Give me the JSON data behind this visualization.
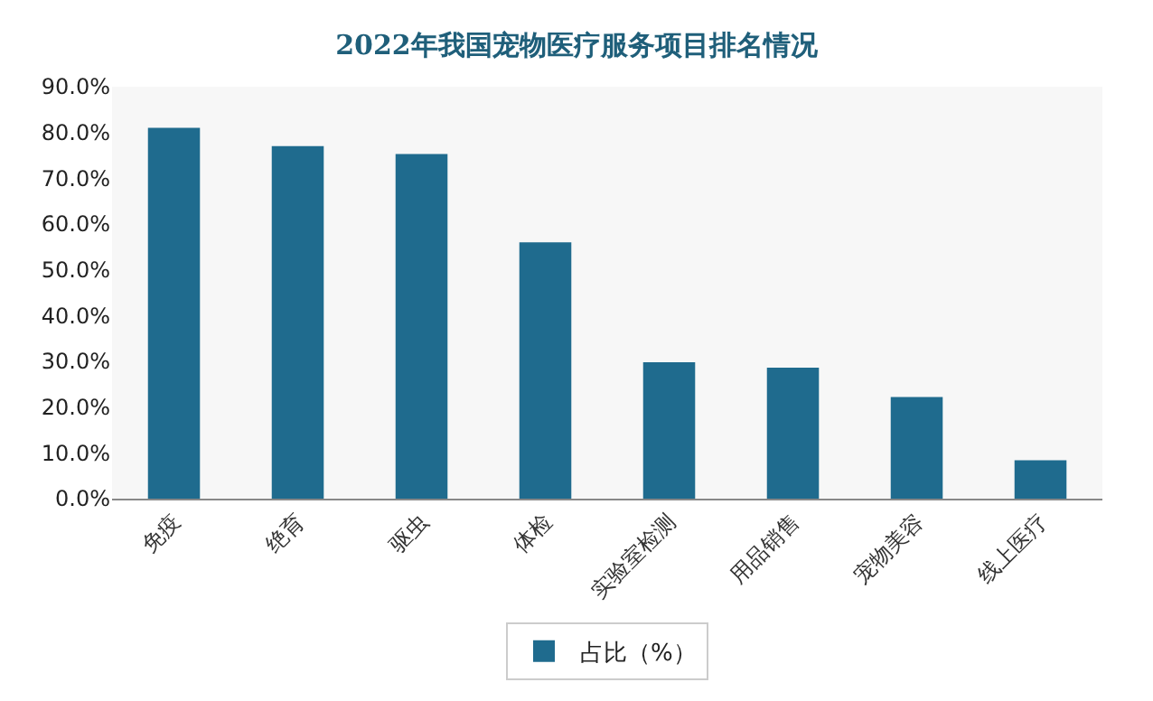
{
  "chart_data": {
    "type": "bar",
    "title": "2022年我国宠物医疗服务项目排名情况",
    "categories": [
      "免疫",
      "绝育",
      "驱虫",
      "体检",
      "实验室检测",
      "用品销售",
      "宠物美容",
      "线上医疗"
    ],
    "series": [
      {
        "name": "占比（%）",
        "color": "#1f6b8e",
        "values": [
          81.0,
          77.0,
          75.3,
          56.0,
          29.8,
          28.6,
          22.2,
          8.4
        ]
      }
    ],
    "ylim": [
      0,
      90
    ],
    "yticks": [
      {
        "value": 0,
        "label": "0.0%"
      },
      {
        "value": 10,
        "label": "10.0%"
      },
      {
        "value": 20,
        "label": "20.0%"
      },
      {
        "value": 30,
        "label": "30.0%"
      },
      {
        "value": 40,
        "label": "40.0%"
      },
      {
        "value": 50,
        "label": "50.0%"
      },
      {
        "value": 60,
        "label": "60.0%"
      },
      {
        "value": 70,
        "label": "70.0%"
      },
      {
        "value": 80,
        "label": "80.0%"
      },
      {
        "value": 90,
        "label": "90.0%"
      }
    ],
    "grid": false,
    "legend": "bottom"
  }
}
